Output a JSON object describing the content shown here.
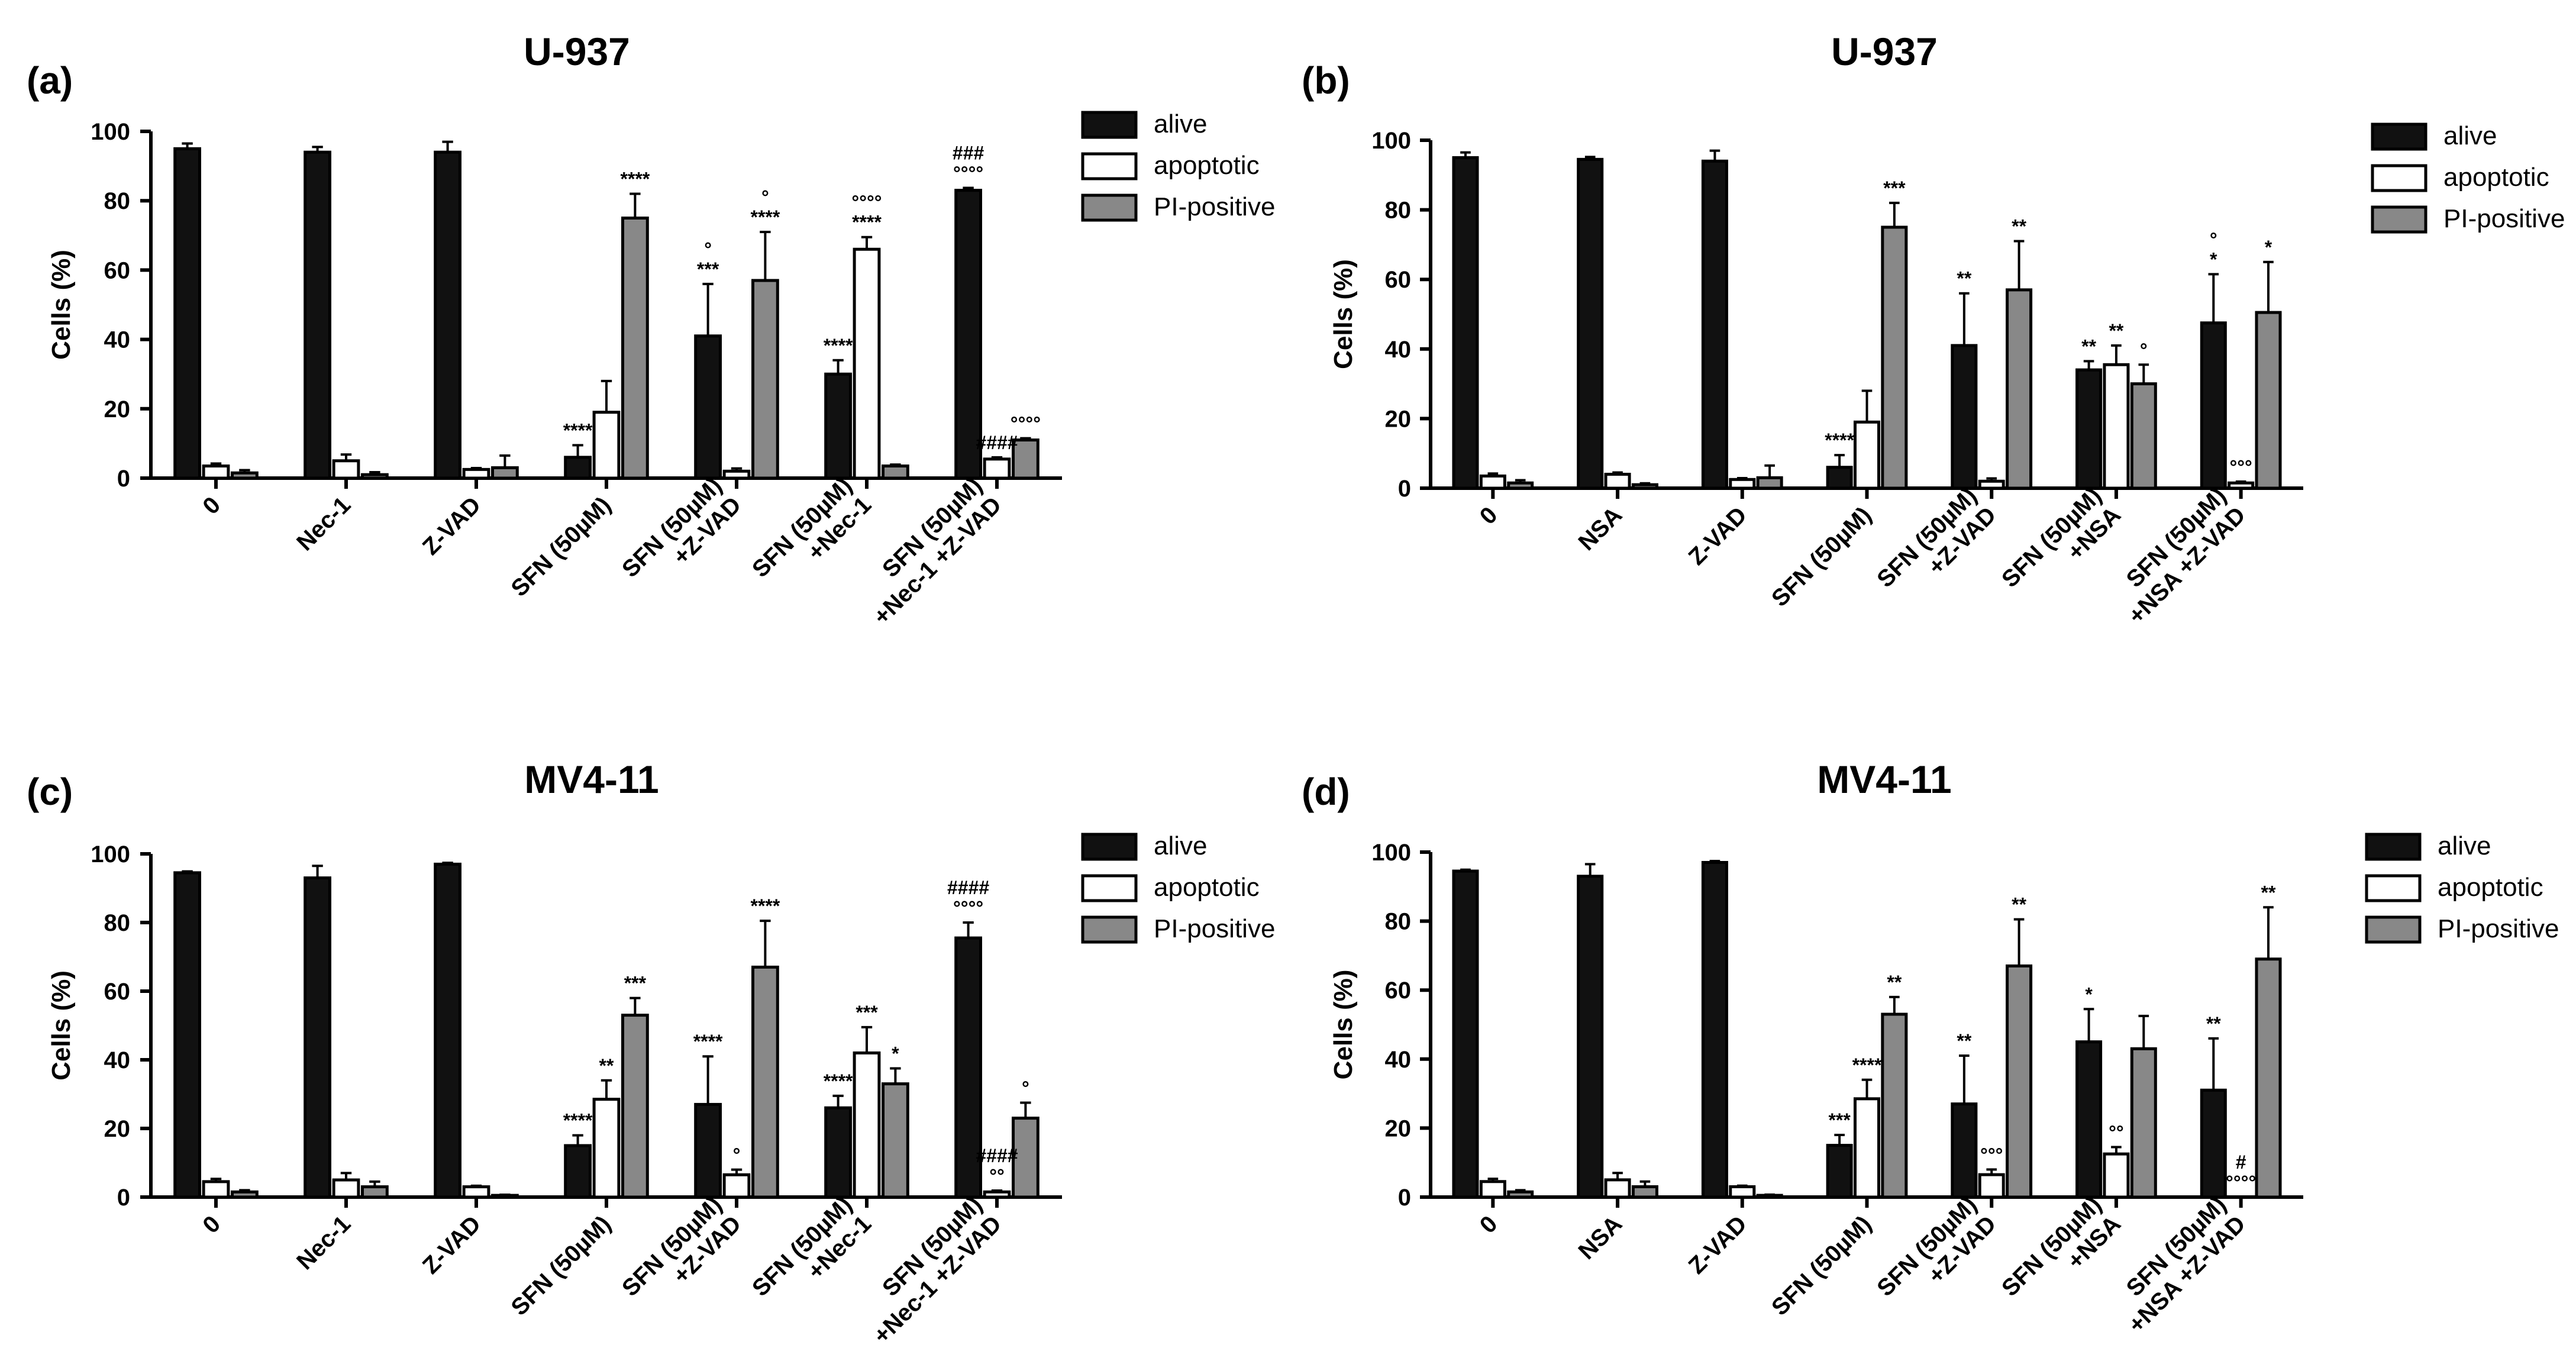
{
  "legend_labels": [
    "alive",
    "apoptotic",
    "PI-positive"
  ],
  "colors": {
    "alive": "#111111",
    "apoptotic": "#ffffff",
    "pi_positive": "#888888",
    "axis": "#000000",
    "text": "#000000"
  },
  "chart_data": [
    {
      "type": "bar",
      "panel_label": "(a)",
      "title": "U-937",
      "ylabel": "Cells (%)",
      "ylim": [
        0,
        100
      ],
      "yticks": [
        "0",
        "20",
        "40",
        "60",
        "80",
        "100"
      ],
      "categories": [
        [
          "0"
        ],
        [
          "Nec-1"
        ],
        [
          "Z-VAD"
        ],
        [
          "SFN (50µM)"
        ],
        [
          "SFN (50µM)",
          "+Z-VAD"
        ],
        [
          "SFN (50µM)",
          "+Nec-1"
        ],
        [
          "SFN (50µM)",
          "+Nec-1 +Z-VAD"
        ]
      ],
      "series": [
        {
          "name": "alive",
          "values": [
            95,
            94,
            94,
            6,
            41,
            30,
            83
          ],
          "errors": [
            1.5,
            1.5,
            3,
            3.5,
            15,
            4,
            0.7
          ]
        },
        {
          "name": "apoptotic",
          "values": [
            3.5,
            5,
            2.5,
            19,
            2,
            66,
            5.5
          ],
          "errors": [
            0.7,
            1.8,
            0.4,
            9,
            0.8,
            3.5,
            0.5
          ]
        },
        {
          "name": "PI-positive",
          "values": [
            1.5,
            1,
            3,
            75,
            57,
            3.5,
            11
          ],
          "errors": [
            0.8,
            0.7,
            3.5,
            7,
            14,
            0.4,
            0.5
          ]
        }
      ],
      "annotations": [
        {
          "cat": 3,
          "series": 0,
          "lines": [
            "****"
          ]
        },
        {
          "cat": 3,
          "series": 2,
          "lines": [
            "****"
          ]
        },
        {
          "cat": 4,
          "series": 0,
          "lines": [
            "°",
            "***"
          ]
        },
        {
          "cat": 4,
          "series": 2,
          "lines": [
            "°",
            "****"
          ]
        },
        {
          "cat": 5,
          "series": 0,
          "lines": [
            "****"
          ]
        },
        {
          "cat": 5,
          "series": 1,
          "lines": [
            "°°°°",
            "****"
          ]
        },
        {
          "cat": 6,
          "series": 0,
          "lines": [
            "###",
            "°°°°"
          ]
        },
        {
          "cat": 6,
          "series": 1,
          "lines": [
            "####"
          ]
        },
        {
          "cat": 6,
          "series": 2,
          "lines": [
            "°°°°"
          ]
        }
      ]
    },
    {
      "type": "bar",
      "panel_label": "(b)",
      "title": "U-937",
      "ylabel": "Cells (%)",
      "ylim": [
        0,
        100
      ],
      "yticks": [
        "0",
        "20",
        "40",
        "60",
        "80",
        "100"
      ],
      "categories": [
        [
          "0"
        ],
        [
          "NSA"
        ],
        [
          "Z-VAD"
        ],
        [
          "SFN (50µM)"
        ],
        [
          "SFN (50µM)",
          "+Z-VAD"
        ],
        [
          "SFN (50µM)",
          "+NSA"
        ],
        [
          "SFN (50µM)",
          "+NSA +Z-VAD"
        ]
      ],
      "series": [
        {
          "name": "alive",
          "values": [
            95,
            94.5,
            94,
            6,
            41,
            34,
            47.5
          ],
          "errors": [
            1.5,
            0.7,
            3,
            3.5,
            15,
            2.5,
            14
          ]
        },
        {
          "name": "apoptotic",
          "values": [
            3.5,
            4,
            2.5,
            19,
            2,
            35.5,
            1.5
          ],
          "errors": [
            0.7,
            0.5,
            0.4,
            9,
            0.8,
            5.5,
            0.4
          ]
        },
        {
          "name": "PI-positive",
          "values": [
            1.5,
            1,
            3,
            75,
            57,
            30,
            50.5
          ],
          "errors": [
            0.8,
            0.4,
            3.5,
            7,
            14,
            5.5,
            14.5
          ]
        }
      ],
      "annotations": [
        {
          "cat": 3,
          "series": 0,
          "lines": [
            "****"
          ]
        },
        {
          "cat": 3,
          "series": 2,
          "lines": [
            "***"
          ]
        },
        {
          "cat": 4,
          "series": 0,
          "lines": [
            "**"
          ]
        },
        {
          "cat": 4,
          "series": 2,
          "lines": [
            "**"
          ]
        },
        {
          "cat": 5,
          "series": 0,
          "lines": [
            "**"
          ]
        },
        {
          "cat": 5,
          "series": 1,
          "lines": [
            "**"
          ]
        },
        {
          "cat": 5,
          "series": 2,
          "lines": [
            "°"
          ]
        },
        {
          "cat": 6,
          "series": 0,
          "lines": [
            "°",
            "*"
          ]
        },
        {
          "cat": 6,
          "series": 1,
          "lines": [
            "°°°"
          ]
        },
        {
          "cat": 6,
          "series": 2,
          "lines": [
            "*"
          ]
        }
      ]
    },
    {
      "type": "bar",
      "panel_label": "(c)",
      "title": "MV4-11",
      "ylabel": "Cells (%)",
      "ylim": [
        0,
        100
      ],
      "yticks": [
        "0",
        "20",
        "40",
        "60",
        "80",
        "100"
      ],
      "categories": [
        [
          "0"
        ],
        [
          "Nec-1"
        ],
        [
          "Z-VAD"
        ],
        [
          "SFN (50µM)"
        ],
        [
          "SFN (50µM)",
          "+Z-VAD"
        ],
        [
          "SFN (50µM)",
          "+Nec-1"
        ],
        [
          "SFN (50µM)",
          "+Nec-1 +Z-VAD"
        ]
      ],
      "series": [
        {
          "name": "alive",
          "values": [
            94.5,
            93,
            97,
            15,
            27,
            26,
            75.5
          ],
          "errors": [
            0.4,
            3.5,
            0.4,
            3,
            14,
            3.5,
            4.5
          ]
        },
        {
          "name": "apoptotic",
          "values": [
            4.5,
            5,
            3,
            28.5,
            6.5,
            42,
            1.5
          ],
          "errors": [
            0.8,
            2,
            0.3,
            5.5,
            1.5,
            7.5,
            0.4
          ]
        },
        {
          "name": "PI-positive",
          "values": [
            1.5,
            3,
            0.5,
            53,
            67,
            33,
            23
          ],
          "errors": [
            0.5,
            1.5,
            0.2,
            5,
            13.5,
            4.5,
            4.5
          ]
        }
      ],
      "annotations": [
        {
          "cat": 3,
          "series": 0,
          "lines": [
            "****"
          ]
        },
        {
          "cat": 3,
          "series": 1,
          "lines": [
            "**"
          ]
        },
        {
          "cat": 3,
          "series": 2,
          "lines": [
            "***"
          ]
        },
        {
          "cat": 4,
          "series": 0,
          "lines": [
            "****"
          ]
        },
        {
          "cat": 4,
          "series": 1,
          "lines": [
            "°"
          ]
        },
        {
          "cat": 4,
          "series": 2,
          "lines": [
            "****"
          ]
        },
        {
          "cat": 5,
          "series": 0,
          "lines": [
            "****"
          ]
        },
        {
          "cat": 5,
          "series": 1,
          "lines": [
            "***"
          ]
        },
        {
          "cat": 5,
          "series": 2,
          "lines": [
            "*"
          ]
        },
        {
          "cat": 6,
          "series": 0,
          "lines": [
            "####",
            "°°°°"
          ]
        },
        {
          "cat": 6,
          "series": 1,
          "lines": [
            "####",
            "°°"
          ]
        },
        {
          "cat": 6,
          "series": 2,
          "lines": [
            "°"
          ]
        }
      ]
    },
    {
      "type": "bar",
      "panel_label": "(d)",
      "title": "MV4-11",
      "ylabel": "Cells (%)",
      "ylim": [
        0,
        100
      ],
      "yticks": [
        "0",
        "20",
        "40",
        "60",
        "80",
        "100"
      ],
      "categories": [
        [
          "0"
        ],
        [
          "NSA"
        ],
        [
          "Z-VAD"
        ],
        [
          "SFN (50µM)"
        ],
        [
          "SFN (50µM)",
          "+Z-VAD"
        ],
        [
          "SFN (50µM)",
          "+NSA"
        ],
        [
          "SFN (50µM)",
          "+NSA +Z-VAD"
        ]
      ],
      "series": [
        {
          "name": "alive",
          "values": [
            94.5,
            93,
            97,
            15,
            27,
            45,
            31
          ],
          "errors": [
            0.4,
            3.5,
            0.4,
            3,
            14,
            9.5,
            15
          ]
        },
        {
          "name": "apoptotic",
          "values": [
            4.5,
            5,
            3,
            28.5,
            6.5,
            12.5,
            0
          ],
          "errors": [
            0.8,
            2,
            0.3,
            5.5,
            1.5,
            2,
            0
          ]
        },
        {
          "name": "PI-positive",
          "values": [
            1.5,
            3,
            0.5,
            53,
            67,
            43,
            69
          ],
          "errors": [
            0.5,
            1.5,
            0.2,
            5,
            13.5,
            9.5,
            15
          ]
        }
      ],
      "annotations": [
        {
          "cat": 3,
          "series": 0,
          "lines": [
            "***"
          ]
        },
        {
          "cat": 3,
          "series": 1,
          "lines": [
            "****"
          ]
        },
        {
          "cat": 3,
          "series": 2,
          "lines": [
            "**"
          ]
        },
        {
          "cat": 4,
          "series": 0,
          "lines": [
            "**"
          ]
        },
        {
          "cat": 4,
          "series": 1,
          "lines": [
            "°°°"
          ]
        },
        {
          "cat": 4,
          "series": 2,
          "lines": [
            "**"
          ]
        },
        {
          "cat": 5,
          "series": 0,
          "lines": [
            "*"
          ]
        },
        {
          "cat": 5,
          "series": 1,
          "lines": [
            "°°"
          ]
        },
        {
          "cat": 6,
          "series": 0,
          "lines": [
            "**"
          ]
        },
        {
          "cat": 6,
          "series": 1,
          "lines": [
            "#",
            "°°°°"
          ]
        },
        {
          "cat": 6,
          "series": 2,
          "lines": [
            "**"
          ]
        }
      ]
    }
  ]
}
